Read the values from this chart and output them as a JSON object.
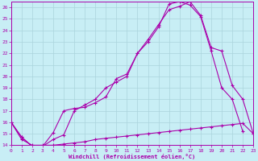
{
  "xlabel": "Windchill (Refroidissement éolien,°C)",
  "bg_color": "#c8eef5",
  "grid_color": "#aad4dc",
  "line_color": "#aa00aa",
  "xlim": [
    0,
    23
  ],
  "ylim": [
    14,
    26.5
  ],
  "xticks": [
    0,
    1,
    2,
    3,
    4,
    5,
    6,
    7,
    8,
    9,
    10,
    11,
    12,
    13,
    14,
    15,
    16,
    17,
    18,
    19,
    20,
    21,
    22,
    23
  ],
  "yticks": [
    14,
    15,
    16,
    17,
    18,
    19,
    20,
    21,
    22,
    23,
    24,
    25,
    26
  ],
  "curve1_x": [
    0,
    1,
    2,
    3,
    4,
    5,
    6,
    7,
    8,
    9,
    10,
    11,
    12,
    13,
    14,
    15,
    16,
    17,
    18,
    19,
    20,
    21,
    22
  ],
  "curve1_y": [
    16.0,
    14.7,
    13.9,
    13.9,
    15.1,
    17.0,
    17.2,
    17.3,
    17.7,
    18.2,
    19.8,
    20.2,
    22.0,
    23.0,
    24.3,
    26.3,
    26.5,
    26.2,
    25.2,
    22.2,
    19.0,
    18.0,
    15.2
  ],
  "curve2_x": [
    0,
    1,
    2,
    3,
    4,
    5,
    6,
    7,
    8,
    9,
    10,
    11,
    12,
    13,
    14,
    15,
    16,
    17,
    18,
    19,
    20,
    21,
    22,
    23
  ],
  "curve2_y": [
    16.0,
    14.7,
    13.9,
    13.9,
    14.5,
    14.9,
    17.0,
    17.5,
    18.0,
    19.0,
    19.5,
    20.0,
    22.0,
    23.2,
    24.5,
    25.8,
    26.1,
    26.5,
    25.3,
    22.5,
    22.2,
    19.2,
    18.0,
    15.0
  ],
  "curve3_x": [
    0,
    1,
    2,
    3,
    4,
    5,
    6,
    7,
    8,
    9,
    10,
    11,
    12,
    13,
    14,
    15,
    16,
    17,
    18,
    19,
    20,
    21,
    22,
    23
  ],
  "curve3_y": [
    16.0,
    14.5,
    14.0,
    14.0,
    14.0,
    14.1,
    14.2,
    14.3,
    14.5,
    14.6,
    14.7,
    14.8,
    14.9,
    15.0,
    15.1,
    15.2,
    15.3,
    15.4,
    15.5,
    15.6,
    15.7,
    15.8,
    15.9,
    15.0
  ]
}
